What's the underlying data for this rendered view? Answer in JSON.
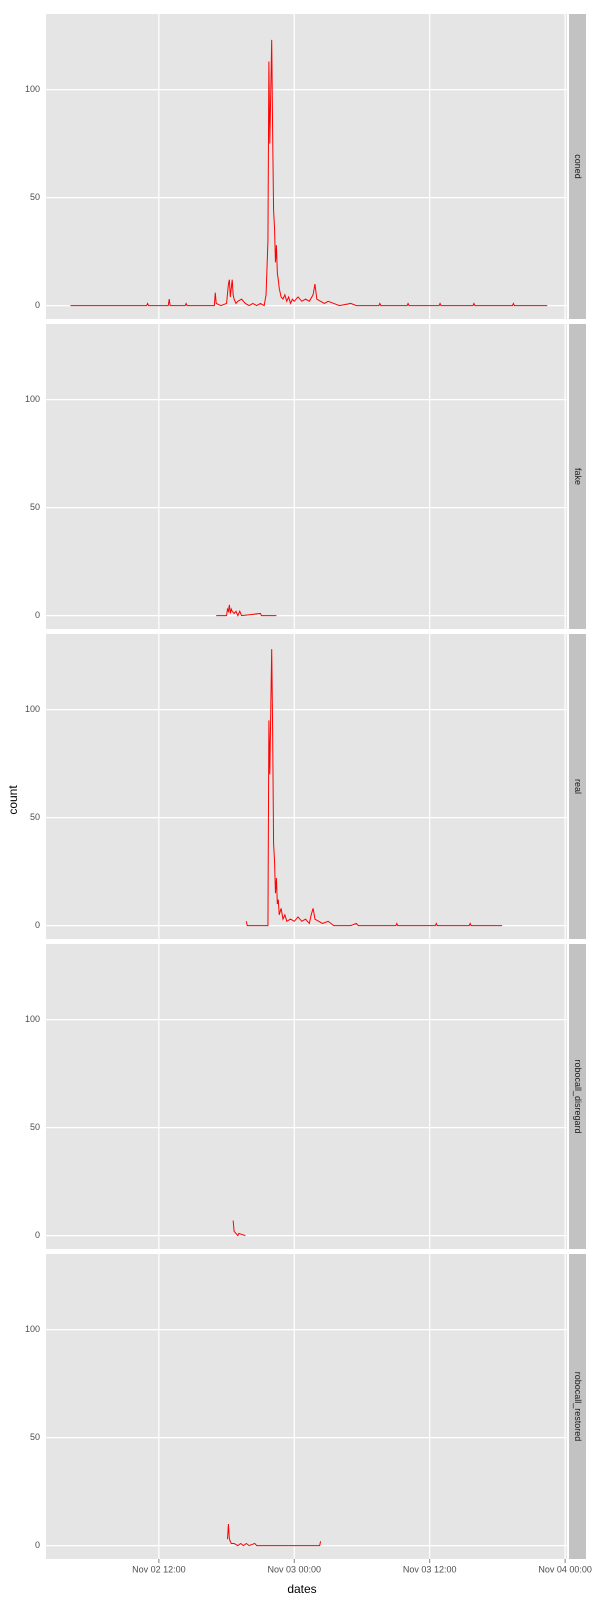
{
  "chart_data": {
    "type": "line",
    "xlabel": "dates",
    "ylabel": "count",
    "color": "#ff0000",
    "grid": true,
    "xlim": [
      "Nov 02 02:00",
      "Nov 04 00:10"
    ],
    "xticks": [
      "Nov 02 12:00",
      "Nov 03 00:00",
      "Nov 03 12:00",
      "Nov 04 00:00"
    ],
    "ylim": [
      -6.2,
      135
    ],
    "yticks": [
      0,
      50,
      100
    ],
    "panels": [
      {
        "name": "coned",
        "x": [
          "Nov 02 04:10",
          "Nov 02 10:55",
          "Nov 02 11:00",
          "Nov 02 11:05",
          "Nov 02 12:50",
          "Nov 02 12:55",
          "Nov 02 13:00",
          "Nov 02 14:20",
          "Nov 02 14:25",
          "Nov 02 14:30",
          "Nov 02 16:55",
          "Nov 02 17:00",
          "Nov 02 17:05",
          "Nov 02 17:30",
          "Nov 02 18:00",
          "Nov 02 18:10",
          "Nov 02 18:15",
          "Nov 02 18:20",
          "Nov 02 18:30",
          "Nov 02 18:35",
          "Nov 02 18:40",
          "Nov 02 18:50",
          "Nov 02 19:00",
          "Nov 02 19:20",
          "Nov 02 19:40",
          "Nov 02 20:00",
          "Nov 02 20:20",
          "Nov 02 20:40",
          "Nov 02 21:00",
          "Nov 02 21:20",
          "Nov 02 21:30",
          "Nov 02 21:40",
          "Nov 02 21:45",
          "Nov 02 21:50",
          "Nov 02 22:00",
          "Nov 02 22:05",
          "Nov 02 22:10",
          "Nov 02 22:15",
          "Nov 02 22:20",
          "Nov 02 22:25",
          "Nov 02 22:30",
          "Nov 02 22:35",
          "Nov 02 22:40",
          "Nov 02 22:50",
          "Nov 02 23:00",
          "Nov 02 23:10",
          "Nov 02 23:20",
          "Nov 02 23:30",
          "Nov 02 23:40",
          "Nov 02 23:50",
          "Nov 03 00:00",
          "Nov 03 00:20",
          "Nov 03 00:40",
          "Nov 03 01:00",
          "Nov 03 01:20",
          "Nov 03 01:40",
          "Nov 03 01:50",
          "Nov 03 02:00",
          "Nov 03 02:20",
          "Nov 03 02:40",
          "Nov 03 03:00",
          "Nov 03 03:30",
          "Nov 03 04:00",
          "Nov 03 05:00",
          "Nov 03 05:30",
          "Nov 03 07:30",
          "Nov 03 07:35",
          "Nov 03 07:40",
          "Nov 03 10:00",
          "Nov 03 10:05",
          "Nov 03 10:10",
          "Nov 03 12:50",
          "Nov 03 12:55",
          "Nov 03 13:00",
          "Nov 03 15:50",
          "Nov 03 15:55",
          "Nov 03 16:00",
          "Nov 03 19:20",
          "Nov 03 19:25",
          "Nov 03 19:30",
          "Nov 03 22:25"
        ],
        "values": [
          0,
          0,
          1,
          0,
          0,
          3,
          0,
          0,
          1,
          0,
          0,
          6,
          1,
          0,
          1,
          10,
          12,
          4,
          12,
          5,
          3,
          1,
          2,
          3,
          1,
          0,
          1,
          0,
          1,
          0,
          5,
          30,
          113,
          75,
          123,
          80,
          44,
          36,
          20,
          28,
          15,
          12,
          8,
          4,
          3,
          5,
          2,
          4,
          1,
          3,
          2,
          4,
          2,
          3,
          2,
          5,
          10,
          3,
          2,
          1,
          2,
          1,
          0,
          1,
          0,
          0,
          1,
          0,
          0,
          1,
          0,
          0,
          1,
          0,
          0,
          1,
          0,
          0,
          1,
          0,
          0
        ]
      },
      {
        "name": "fake",
        "x": [
          "Nov 02 17:05",
          "Nov 02 18:00",
          "Nov 02 18:05",
          "Nov 02 18:10",
          "Nov 02 18:15",
          "Nov 02 18:20",
          "Nov 02 18:25",
          "Nov 02 18:30",
          "Nov 02 18:40",
          "Nov 02 18:50",
          "Nov 02 19:00",
          "Nov 02 19:10",
          "Nov 02 19:20",
          "Nov 02 21:00",
          "Nov 02 21:05",
          "Nov 02 22:25"
        ],
        "values": [
          0,
          0,
          3,
          2,
          5,
          1,
          3,
          2,
          1,
          2,
          0,
          2,
          0,
          1,
          0,
          0
        ]
      },
      {
        "name": "real",
        "x": [
          "Nov 02 19:45",
          "Nov 02 19:50",
          "Nov 02 21:40",
          "Nov 02 21:45",
          "Nov 02 21:50",
          "Nov 02 21:55",
          "Nov 02 22:00",
          "Nov 02 22:05",
          "Nov 02 22:10",
          "Nov 02 22:15",
          "Nov 02 22:20",
          "Nov 02 22:25",
          "Nov 02 22:30",
          "Nov 02 22:35",
          "Nov 02 22:40",
          "Nov 02 22:50",
          "Nov 02 23:00",
          "Nov 02 23:10",
          "Nov 02 23:20",
          "Nov 02 23:40",
          "Nov 03 00:00",
          "Nov 03 00:20",
          "Nov 03 00:40",
          "Nov 03 01:00",
          "Nov 03 01:20",
          "Nov 03 01:30",
          "Nov 03 01:40",
          "Nov 03 01:50",
          "Nov 03 02:10",
          "Nov 03 02:30",
          "Nov 03 03:00",
          "Nov 03 03:30",
          "Nov 03 05:00",
          "Nov 03 05:30",
          "Nov 03 05:40",
          "Nov 03 09:00",
          "Nov 03 09:05",
          "Nov 03 09:10",
          "Nov 03 12:30",
          "Nov 03 12:35",
          "Nov 03 12:40",
          "Nov 03 15:30",
          "Nov 03 15:35",
          "Nov 03 15:40",
          "Nov 03 18:25"
        ],
        "values": [
          2,
          0,
          0,
          95,
          70,
          100,
          128,
          90,
          38,
          30,
          15,
          22,
          10,
          12,
          5,
          8,
          3,
          5,
          2,
          3,
          2,
          4,
          2,
          3,
          1,
          5,
          8,
          3,
          2,
          1,
          2,
          0,
          0,
          1,
          0,
          0,
          1,
          0,
          0,
          1,
          0,
          0,
          1,
          0,
          0
        ]
      },
      {
        "name": "robocall_disregard",
        "x": [
          "Nov 02 18:35",
          "Nov 02 18:40",
          "Nov 02 18:50",
          "Nov 02 19:00",
          "Nov 02 19:05",
          "Nov 02 19:40"
        ],
        "values": [
          7,
          2,
          1,
          0,
          1,
          0
        ]
      },
      {
        "name": "robocall_restored",
        "x": [
          "Nov 02 18:05",
          "Nov 02 18:10",
          "Nov 02 18:15",
          "Nov 02 18:25",
          "Nov 02 18:40",
          "Nov 02 19:00",
          "Nov 02 19:15",
          "Nov 02 19:30",
          "Nov 02 19:45",
          "Nov 02 20:00",
          "Nov 02 20:30",
          "Nov 02 20:40",
          "Nov 03 02:15",
          "Nov 03 02:20"
        ],
        "values": [
          3,
          10,
          3,
          1,
          1,
          0,
          1,
          0,
          1,
          0,
          1,
          0,
          0,
          2
        ]
      }
    ]
  }
}
